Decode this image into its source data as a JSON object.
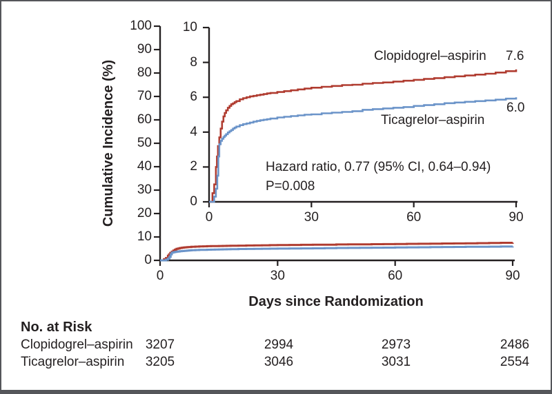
{
  "figure": {
    "background": "#ffffff",
    "border_color": "#55565a"
  },
  "chart_data": {
    "type": "line",
    "subtype": "kaplan-meier-step-curves-with-inset",
    "title": "",
    "xlabel": "Days since Randomization",
    "ylabel": "Cumulative Incidence (%)",
    "axis_color": "#231f20",
    "grid": "off",
    "legend_position": "inline-labels",
    "main_axis": {
      "xlim": [
        0,
        90
      ],
      "ylim": [
        0,
        100
      ],
      "xticks": [
        0,
        30,
        60,
        90
      ],
      "yticks": [
        100,
        90,
        80,
        70,
        60,
        50,
        40,
        30,
        20,
        10,
        0
      ]
    },
    "inset_axis": {
      "xlim": [
        0,
        90
      ],
      "ylim": [
        0,
        10
      ],
      "xticks": [
        0,
        30,
        60,
        90
      ],
      "yticks": [
        10,
        8,
        6,
        4,
        2,
        0
      ]
    },
    "annotation": {
      "hazard_ratio": "Hazard ratio, 0.77 (95% CI, 0.64–0.94)",
      "p_value": "P=0.008"
    },
    "series": [
      {
        "name": "Clopidogrel–aspirin",
        "color": "#b03c30",
        "end_label": "7.6",
        "x": [
          0,
          1,
          1.5,
          2,
          2.3,
          2.6,
          3,
          3.4,
          3.8,
          4.2,
          4.6,
          5,
          5.5,
          6,
          6.5,
          7,
          7.5,
          8,
          9,
          10,
          11,
          12,
          13,
          14,
          15,
          16,
          17,
          18,
          20,
          22,
          24,
          26,
          28,
          30,
          33,
          36,
          39,
          42,
          45,
          48,
          51,
          54,
          57,
          60,
          63,
          66,
          69,
          72,
          75,
          78,
          81,
          84,
          87,
          90
        ],
        "y": [
          0,
          0.5,
          1.0,
          2.0,
          2.6,
          3.2,
          3.7,
          4.2,
          4.6,
          4.9,
          5.1,
          5.25,
          5.4,
          5.5,
          5.6,
          5.65,
          5.72,
          5.78,
          5.88,
          5.95,
          6.0,
          6.05,
          6.08,
          6.12,
          6.15,
          6.18,
          6.22,
          6.25,
          6.3,
          6.35,
          6.4,
          6.45,
          6.5,
          6.55,
          6.6,
          6.65,
          6.7,
          6.72,
          6.78,
          6.82,
          6.85,
          6.9,
          6.95,
          7.0,
          7.05,
          7.1,
          7.15,
          7.2,
          7.25,
          7.3,
          7.35,
          7.42,
          7.5,
          7.6
        ]
      },
      {
        "name": "Ticagrelor–aspirin",
        "color": "#6b94c9",
        "end_label": "6.0",
        "x": [
          0,
          1.5,
          2,
          2.4,
          2.7,
          3,
          3.4,
          3.8,
          4.2,
          4.6,
          5,
          5.5,
          6,
          6.5,
          7,
          7.5,
          8,
          9,
          10,
          11,
          12,
          13,
          14,
          15,
          16,
          17,
          18,
          20,
          22,
          24,
          26,
          28,
          30,
          33,
          36,
          39,
          42,
          45,
          48,
          51,
          54,
          57,
          60,
          63,
          66,
          69,
          72,
          75,
          78,
          81,
          84,
          87,
          90
        ],
        "y": [
          0,
          0.3,
          0.75,
          1.5,
          2.6,
          3.3,
          3.5,
          3.62,
          3.72,
          3.8,
          3.88,
          3.98,
          4.05,
          4.12,
          4.2,
          4.26,
          4.32,
          4.4,
          4.46,
          4.5,
          4.55,
          4.6,
          4.64,
          4.68,
          4.71,
          4.74,
          4.78,
          4.84,
          4.88,
          4.92,
          4.96,
          5.0,
          5.02,
          5.08,
          5.12,
          5.16,
          5.2,
          5.28,
          5.32,
          5.36,
          5.4,
          5.44,
          5.5,
          5.55,
          5.6,
          5.66,
          5.7,
          5.74,
          5.78,
          5.82,
          5.86,
          5.92,
          6.0
        ]
      }
    ]
  },
  "risk_table": {
    "title": "No. at Risk",
    "rows": [
      {
        "label": "Clopidogrel–aspirin",
        "counts": [
          "3207",
          "2994",
          "2973",
          "2486"
        ]
      },
      {
        "label": "Ticagrelor–aspirin",
        "counts": [
          "3205",
          "3046",
          "3031",
          "2554"
        ]
      }
    ]
  }
}
